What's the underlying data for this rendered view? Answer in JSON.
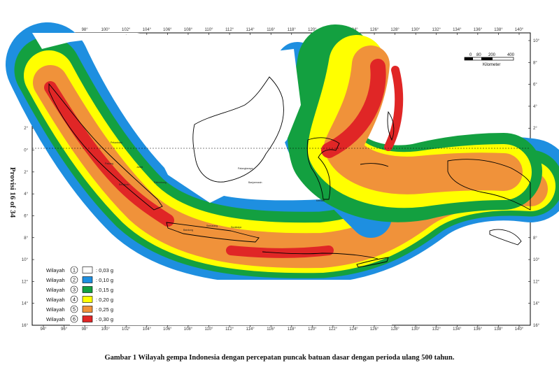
{
  "side_label": "Provisi 16 of 34",
  "caption": "Gambar 1 Wilayah gempa Indonesia dengan percepatan puncak batuan dasar dengan perioda ulang 500 tahun.",
  "lon_ticks": [
    "94°",
    "96°",
    "98°",
    "100°",
    "102°",
    "104°",
    "106°",
    "108°",
    "110°",
    "112°",
    "114°",
    "116°",
    "118°",
    "120°",
    "122°",
    "124°",
    "126°",
    "128°",
    "130°",
    "132°",
    "134°",
    "136°",
    "138°",
    "140°"
  ],
  "lat_ticks": [
    "10°",
    "8°",
    "6°",
    "4°",
    "2°",
    "0°",
    "2°",
    "4°",
    "6°",
    "8°",
    "10°",
    "12°",
    "14°",
    "16°"
  ],
  "scale": {
    "ticks": [
      "0",
      "80",
      "200",
      "400"
    ],
    "unit": "Kilometer"
  },
  "legend": {
    "items": [
      {
        "label": "Wilayah",
        "number": "1",
        "value": ": 0,03 g",
        "color": "#ffffff"
      },
      {
        "label": "Wilayah",
        "number": "2",
        "value": ": 0,10 g",
        "color": "#1e8fe0"
      },
      {
        "label": "Wilayah",
        "number": "3",
        "value": ": 0,15 g",
        "color": "#13a040"
      },
      {
        "label": "Wilayah",
        "number": "4",
        "value": ": 0,20 g",
        "color": "#ffff00"
      },
      {
        "label": "Wilayah",
        "number": "5",
        "value": ": 0,25 g",
        "color": "#f0923a"
      },
      {
        "label": "Wilayah",
        "number": "6",
        "value": ": 0,30 g",
        "color": "#e02626"
      }
    ]
  },
  "place_labels": [
    "Pekanbaru",
    "Padang",
    "Jambi",
    "Bengkulu",
    "Palembang",
    "Bandung",
    "Semarang",
    "Surabaya",
    "Palangkaraya",
    "Banjarmasin",
    "Kendari"
  ]
}
